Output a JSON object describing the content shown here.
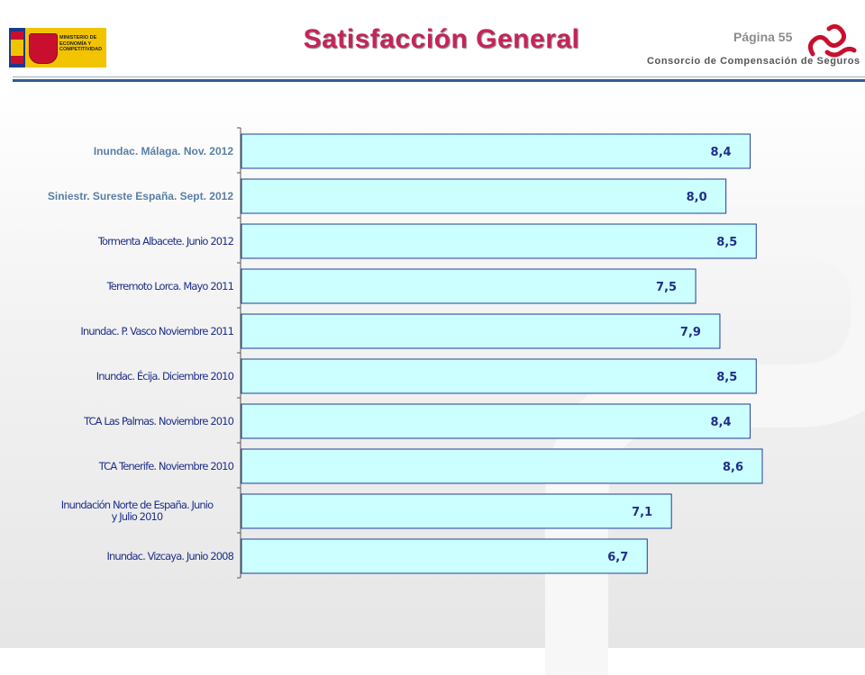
{
  "header": {
    "title": "Satisfacción General",
    "page_label": "Página 55",
    "org_name": "Consorcio de Compensación de Seguros",
    "ministry_text": "MINISTERIO DE ECONOMÍA Y COMPETITIVIDAD"
  },
  "colors": {
    "title": "#c4245b",
    "bar_fill": "#ccffff",
    "bar_stroke": "#1f3f9a",
    "label_top": "#5a7fa6",
    "label_bottom": "#1f2f8a",
    "value_text": "#1f2f8a"
  },
  "chart_data": {
    "type": "bar",
    "orientation": "horizontal",
    "categories": [
      "Inundac. Málaga. Nov. 2012",
      "Siniestr. Sureste España. Sept. 2012",
      "Tormenta Albacete. Junio 2012",
      "Terremoto Lorca. Mayo 2011",
      "Inundac. P. Vasco Noviembre 2011",
      "Inundac. Écija. Diciembre 2010",
      "TCA Las Palmas. Noviembre 2010",
      "TCA Tenerife. Noviembre 2010",
      "Inundación Norte de España. Junio y Julio 2010",
      "Inundac. Vizcaya. Junio 2008"
    ],
    "values": [
      8.4,
      8.0,
      8.5,
      7.5,
      7.9,
      8.5,
      8.4,
      8.6,
      7.1,
      6.7
    ],
    "value_labels": [
      "8,4",
      "8,0",
      "8,5",
      "7,5",
      "7,9",
      "8,5",
      "8,4",
      "8,6",
      "7,1",
      "6,7"
    ],
    "xlim": [
      0,
      8.6
    ],
    "grid": false,
    "legend": "none"
  }
}
